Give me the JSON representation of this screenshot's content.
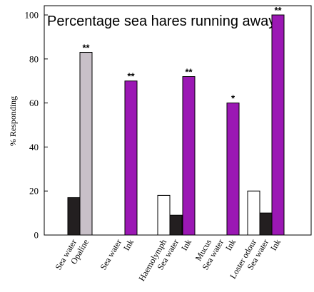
{
  "chart_data": {
    "type": "bar",
    "title": "Percentage sea hares running away",
    "ylabel": "% Responding",
    "xlabel": "",
    "ylim": [
      0,
      100
    ],
    "yticks": [
      0,
      20,
      40,
      60,
      80,
      100
    ],
    "grid": false,
    "legend": "none",
    "colors": {
      "white": "#ffffff",
      "black": "#231f20",
      "lavender": "#c8c0c8",
      "purple": "#9b18b4"
    },
    "bars": [
      {
        "category": "Sea water",
        "value": 17,
        "color": "black",
        "sig": ""
      },
      {
        "category": "Opaline",
        "value": 83,
        "color": "lavender",
        "sig": "**"
      },
      {
        "category": "Sea water",
        "value": 0,
        "color": "black",
        "sig": ""
      },
      {
        "category": "Ink",
        "value": 70,
        "color": "purple",
        "sig": "**"
      },
      {
        "category": "Haemolymph",
        "value": 18,
        "color": "white",
        "sig": ""
      },
      {
        "category": "Sea water",
        "value": 9,
        "color": "black",
        "sig": ""
      },
      {
        "category": "Ink",
        "value": 72,
        "color": "purple",
        "sig": "**"
      },
      {
        "category": "Mucus",
        "value": 0,
        "color": "white",
        "sig": ""
      },
      {
        "category": "Sea water",
        "value": 0,
        "color": "black",
        "sig": ""
      },
      {
        "category": "Ink",
        "value": 60,
        "color": "purple",
        "sig": "*"
      },
      {
        "category": "Loster odour",
        "value": 20,
        "color": "white",
        "sig": ""
      },
      {
        "category": "Sea water",
        "value": 10,
        "color": "black",
        "sig": ""
      },
      {
        "category": "Ink",
        "value": 100,
        "color": "purple",
        "sig": "**"
      }
    ]
  }
}
